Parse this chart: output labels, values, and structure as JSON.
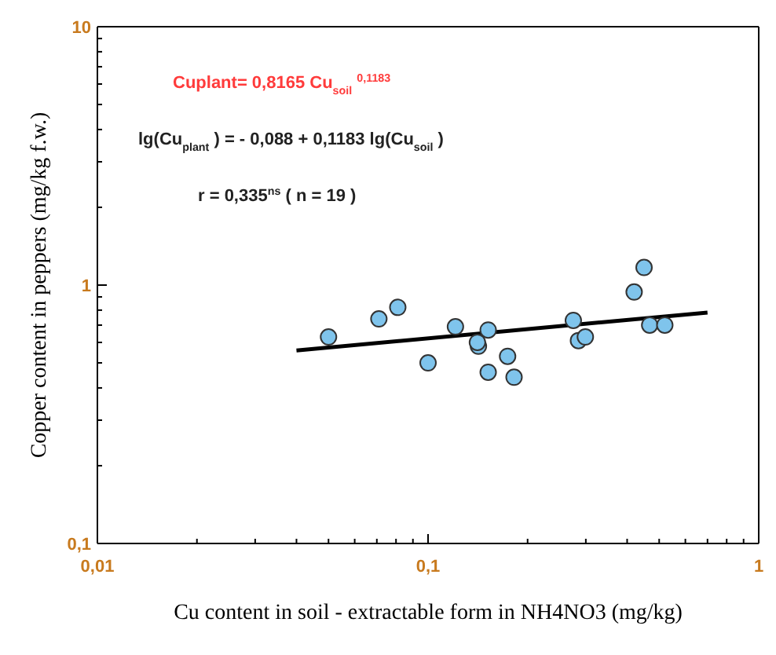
{
  "chart_data": {
    "type": "scatter",
    "xlabel": "Cu content in soil - extractable form in NH4NO3 (mg/kg)",
    "ylabel": "Copper content in peppers (mg/kg f.w.)",
    "log": "xy",
    "marker": "circle",
    "xlim": [
      0.01,
      1
    ],
    "xticks": [
      {
        "value": 0.01,
        "label": "0,01"
      },
      {
        "value": 0.02,
        "label": null
      },
      {
        "value": 0.03,
        "label": null
      },
      {
        "value": 0.04,
        "label": null
      },
      {
        "value": 0.05,
        "label": null
      },
      {
        "value": 0.06,
        "label": null
      },
      {
        "value": 0.07,
        "label": null
      },
      {
        "value": 0.08,
        "label": null
      },
      {
        "value": 0.09,
        "label": null
      },
      {
        "value": 0.1,
        "label": "0,1"
      },
      {
        "value": 0.2,
        "label": null
      },
      {
        "value": 0.3,
        "label": null
      },
      {
        "value": 0.4,
        "label": null
      },
      {
        "value": 0.5,
        "label": null
      },
      {
        "value": 0.6,
        "label": null
      },
      {
        "value": 0.7,
        "label": null
      },
      {
        "value": 0.8,
        "label": null
      },
      {
        "value": 0.9,
        "label": null
      },
      {
        "value": 1,
        "label": "1"
      }
    ],
    "ylim": [
      0.1,
      10
    ],
    "yticks": [
      {
        "value": 0.1,
        "label": "0,1"
      },
      {
        "value": 0.2,
        "label": null
      },
      {
        "value": 0.3,
        "label": null
      },
      {
        "value": 0.4,
        "label": null
      },
      {
        "value": 0.5,
        "label": null
      },
      {
        "value": 0.6,
        "label": null
      },
      {
        "value": 0.7,
        "label": null
      },
      {
        "value": 0.8,
        "label": null
      },
      {
        "value": 0.9,
        "label": null
      },
      {
        "value": 1,
        "label": "1"
      },
      {
        "value": 2,
        "label": null
      },
      {
        "value": 3,
        "label": null
      },
      {
        "value": 4,
        "label": null
      },
      {
        "value": 5,
        "label": null
      },
      {
        "value": 6,
        "label": null
      },
      {
        "value": 7,
        "label": null
      },
      {
        "value": 8,
        "label": null
      },
      {
        "value": 9,
        "label": null
      },
      {
        "value": 10,
        "label": "10"
      }
    ],
    "series": [
      {
        "color": "#7fc4ec",
        "x": [
          0.05,
          0.071,
          0.081,
          0.1,
          0.121,
          0.142,
          0.141,
          0.152,
          0.152,
          0.174,
          0.182,
          0.275,
          0.285,
          0.299,
          0.42,
          0.45,
          0.468,
          0.52
        ],
        "values": [
          0.63,
          0.74,
          0.82,
          0.5,
          0.69,
          0.58,
          0.6,
          0.67,
          0.46,
          0.53,
          0.44,
          0.73,
          0.61,
          0.63,
          0.94,
          1.17,
          0.7,
          0.7
        ]
      },
      {
        "type": "line",
        "color": "#000000",
        "marker": "none",
        "x": [
          0.04,
          0.7
        ],
        "values": [
          0.558,
          0.783
        ]
      }
    ],
    "annotations": [
      "Cuplant= 0,8165 Cu$_{soil}$$^{0,1183}$",
      "lg(Cu$_{plant}$) = - 0,088 + 0,1183 lg(Cu$_{soil}$)",
      "r = 0,335$^{ns}$  ( n = 19 )"
    ]
  }
}
